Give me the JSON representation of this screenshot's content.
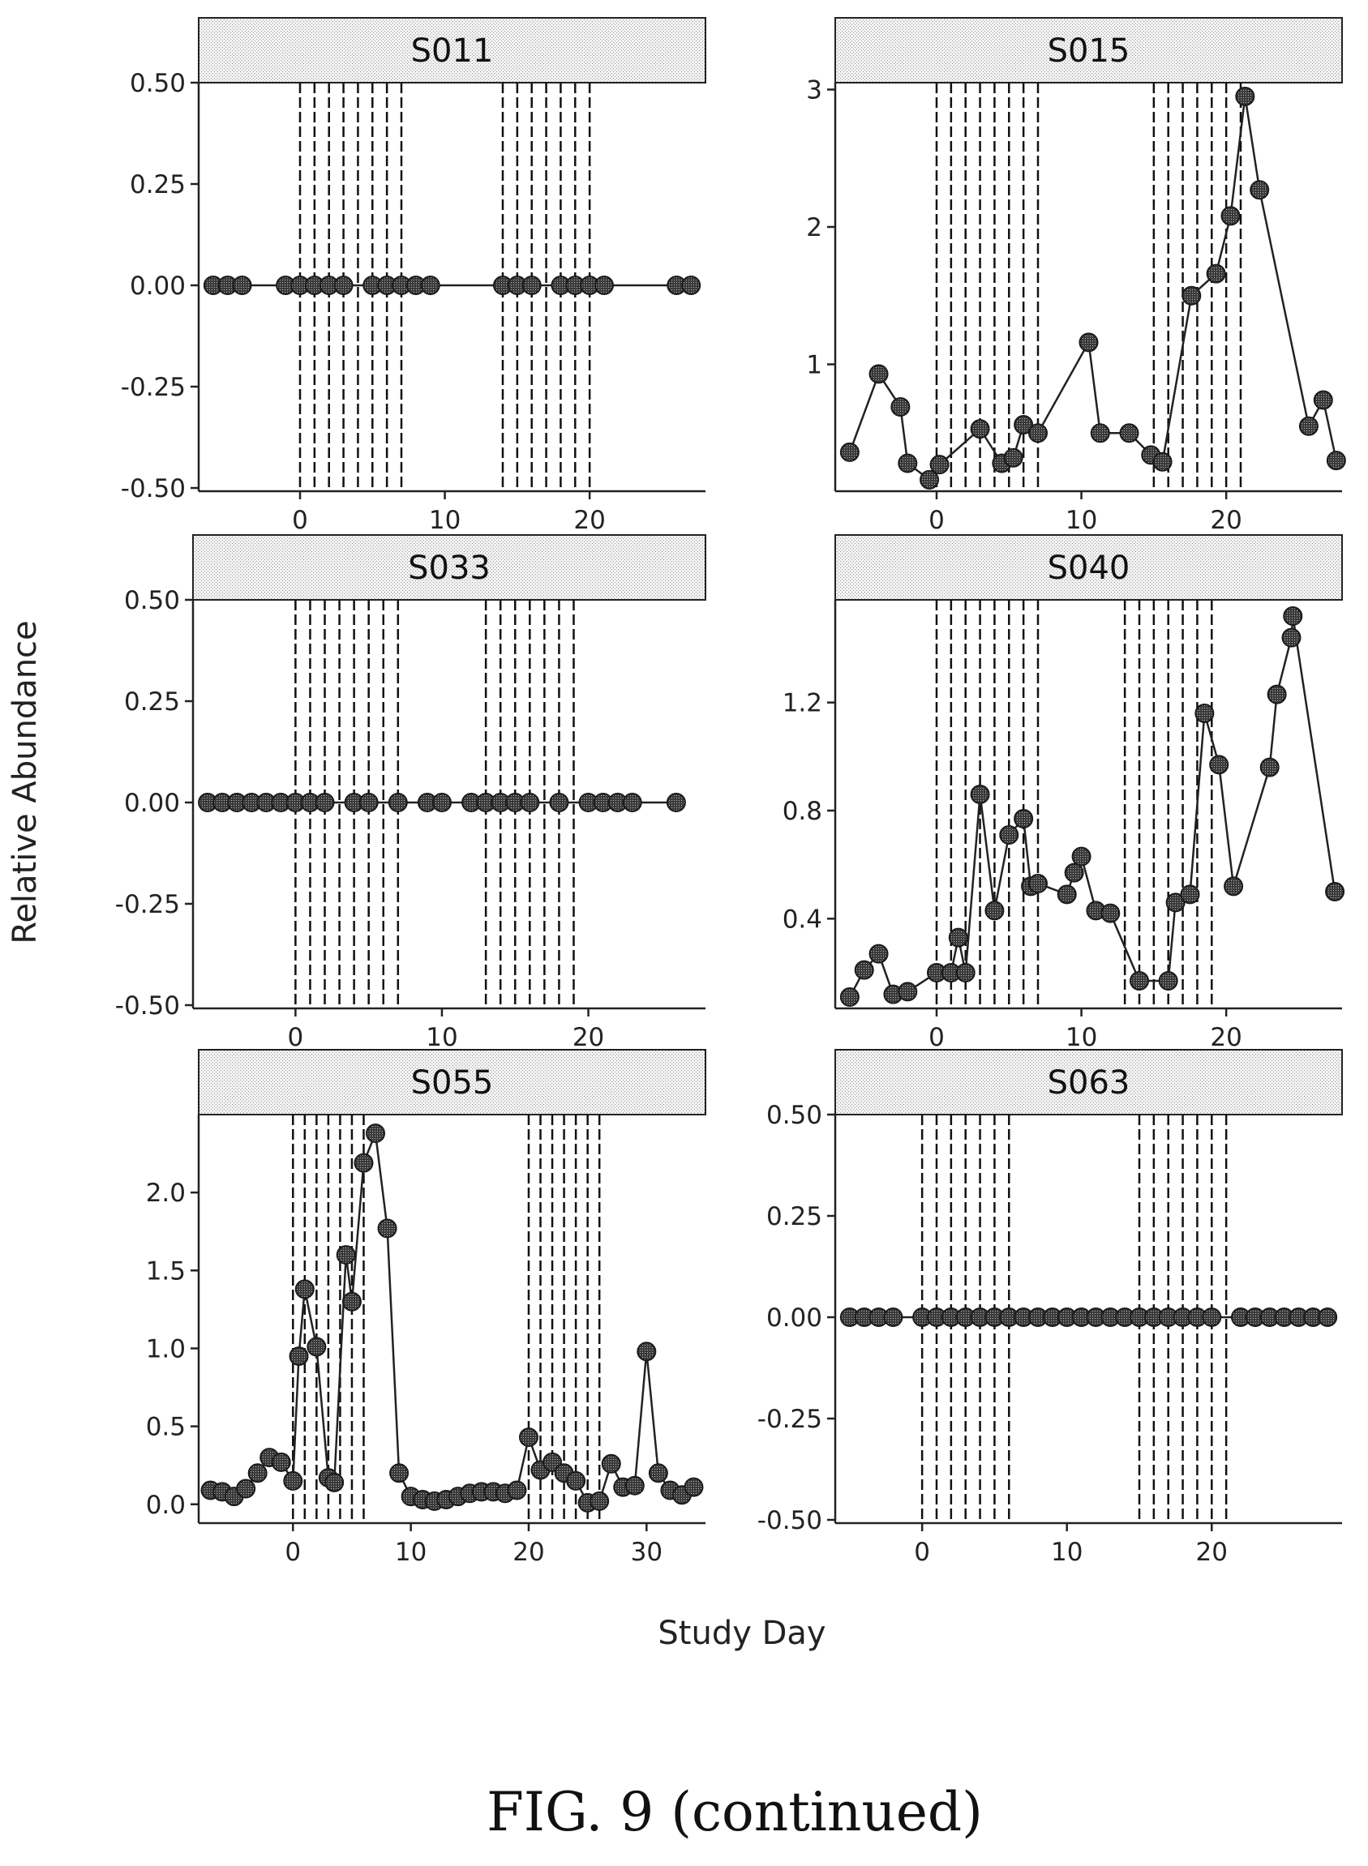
{
  "figure": {
    "caption": "FIG. 9 (continued)",
    "xlabel": "Study Day",
    "ylabel": "Relative Abundance"
  },
  "chart_data": [
    {
      "type": "line",
      "title": "S011",
      "xlim": [
        -7,
        28
      ],
      "ylim": [
        -0.5,
        0.5
      ],
      "x_ticks": [
        0,
        10,
        20
      ],
      "y_ticks": [
        -0.5,
        -0.25,
        0.0,
        0.25,
        0.5
      ],
      "y_tick_labels": [
        "-0.50",
        "-0.25",
        "0.00",
        "0.25",
        "0.50"
      ],
      "grid": false,
      "dose_days": [
        0,
        1,
        2,
        3,
        4,
        5,
        6,
        7,
        14,
        15,
        16,
        17,
        18,
        19,
        20
      ],
      "x": [
        -6,
        -5,
        -4,
        -1,
        0,
        1,
        2,
        3,
        5,
        6,
        7,
        8,
        9,
        14,
        15,
        16,
        18,
        19,
        20,
        21,
        26,
        27
      ],
      "y": [
        0,
        0,
        0,
        0,
        0,
        0,
        0,
        0,
        0,
        0,
        0,
        0,
        0,
        0,
        0,
        0,
        0,
        0,
        0,
        0,
        0,
        0
      ]
    },
    {
      "type": "line",
      "title": "S015",
      "xlim": [
        -7,
        28
      ],
      "ylim": [
        0.1,
        3.05
      ],
      "x_ticks": [
        0,
        10,
        20
      ],
      "y_ticks": [
        1,
        2,
        3
      ],
      "y_tick_labels": [
        "1",
        "2",
        "3"
      ],
      "grid": false,
      "dose_days": [
        0,
        1,
        2,
        3,
        4,
        5,
        6,
        7,
        15,
        16,
        17,
        18,
        19,
        20,
        21
      ],
      "x": [
        -6,
        -4,
        -2.5,
        -2,
        -0.5,
        0.2,
        3,
        4.5,
        5.3,
        6,
        7,
        10.5,
        11.3,
        13.3,
        14.8,
        15.6,
        17.6,
        19.3,
        20.3,
        21.3,
        22.3,
        25.7,
        26.7,
        27.6
      ],
      "y": [
        0.36,
        0.93,
        0.69,
        0.28,
        0.16,
        0.27,
        0.53,
        0.28,
        0.32,
        0.56,
        0.5,
        1.16,
        0.5,
        0.5,
        0.34,
        0.29,
        1.5,
        1.66,
        2.08,
        2.95,
        2.27,
        0.55,
        0.74,
        0.3
      ]
    },
    {
      "type": "line",
      "title": "S033",
      "xlim": [
        -7,
        28
      ],
      "ylim": [
        -0.5,
        0.5
      ],
      "x_ticks": [
        0,
        10,
        20
      ],
      "y_ticks": [
        -0.5,
        -0.25,
        0.0,
        0.25,
        0.5
      ],
      "y_tick_labels": [
        "-0.50",
        "-0.25",
        "0.00",
        "0.25",
        "0.50"
      ],
      "grid": false,
      "dose_days": [
        0,
        1,
        2,
        3,
        4,
        5,
        6,
        7,
        13,
        14,
        15,
        16,
        17,
        18,
        19
      ],
      "x": [
        -6,
        -5,
        -4,
        -3,
        -2,
        -1,
        0,
        1,
        2,
        4,
        5,
        7,
        9,
        10,
        12,
        13,
        14,
        15,
        16,
        18,
        20,
        21,
        22,
        23,
        26
      ],
      "y": [
        0,
        0,
        0,
        0,
        0,
        0,
        0,
        0,
        0,
        0,
        0,
        0,
        0,
        0,
        0,
        0,
        0,
        0,
        0,
        0,
        0,
        0,
        0,
        0,
        0
      ]
    },
    {
      "type": "line",
      "title": "S040",
      "xlim": [
        -7,
        28
      ],
      "ylim": [
        0.08,
        1.58
      ],
      "x_ticks": [
        0,
        10,
        20
      ],
      "y_ticks": [
        0.4,
        0.8,
        1.2
      ],
      "y_tick_labels": [
        "0.4",
        "0.8",
        "1.2"
      ],
      "grid": false,
      "dose_days": [
        0,
        1,
        2,
        3,
        4,
        5,
        6,
        7,
        13,
        14,
        15,
        16,
        17,
        18,
        19
      ],
      "x": [
        -6,
        -5,
        -4,
        -3,
        -2,
        0,
        1,
        1.5,
        2,
        3,
        4,
        5,
        6,
        6.5,
        7,
        9,
        9.5,
        10,
        11,
        12,
        14,
        16,
        16.5,
        17.5,
        18.5,
        19.5,
        20.5,
        23,
        23.5,
        24.5,
        24.6,
        27.5
      ],
      "y": [
        0.11,
        0.21,
        0.27,
        0.12,
        0.13,
        0.2,
        0.2,
        0.33,
        0.2,
        0.86,
        0.43,
        0.71,
        0.77,
        0.52,
        0.53,
        0.49,
        0.57,
        0.63,
        0.43,
        0.42,
        0.17,
        0.17,
        0.46,
        0.49,
        1.16,
        0.97,
        0.52,
        0.96,
        1.23,
        1.44,
        1.52,
        0.5
      ]
    },
    {
      "type": "line",
      "title": "S055",
      "xlim": [
        -8,
        35
      ],
      "ylim": [
        -0.1,
        2.5
      ],
      "x_ticks": [
        0,
        10,
        20,
        30
      ],
      "y_ticks": [
        0.0,
        0.5,
        1.0,
        1.5,
        2.0
      ],
      "y_tick_labels": [
        "0.0",
        "0.5",
        "1.0",
        "1.5",
        "2.0"
      ],
      "grid": false,
      "dose_days": [
        0,
        1,
        2,
        3,
        4,
        5,
        6,
        20,
        21,
        22,
        23,
        24,
        25,
        26
      ],
      "x": [
        -7,
        -6,
        -5,
        -4,
        -3,
        -2,
        -1,
        0,
        0.5,
        1,
        2,
        3,
        3.5,
        4.5,
        5,
        6,
        7,
        8,
        9,
        10,
        11,
        12,
        13,
        14,
        15,
        16,
        17,
        18,
        19,
        20,
        21,
        22,
        23,
        24,
        25,
        26,
        27,
        28,
        29,
        30,
        31,
        32,
        33,
        34
      ],
      "y": [
        0.09,
        0.08,
        0.05,
        0.1,
        0.2,
        0.3,
        0.27,
        0.15,
        0.95,
        1.38,
        1.01,
        0.17,
        0.14,
        1.6,
        1.3,
        2.19,
        2.38,
        1.77,
        0.2,
        0.05,
        0.03,
        0.02,
        0.03,
        0.05,
        0.07,
        0.08,
        0.08,
        0.07,
        0.09,
        0.43,
        0.22,
        0.27,
        0.2,
        0.15,
        0.01,
        0.02,
        0.26,
        0.11,
        0.12,
        0.98,
        0.2,
        0.09,
        0.06,
        0.11
      ]
    },
    {
      "type": "line",
      "title": "S063",
      "xlim": [
        -6,
        29
      ],
      "ylim": [
        -0.5,
        0.5
      ],
      "x_ticks": [
        0,
        10,
        20
      ],
      "y_ticks": [
        -0.5,
        -0.25,
        0.0,
        0.25,
        0.5
      ],
      "y_tick_labels": [
        "-0.50",
        "-0.25",
        "0.00",
        "0.25",
        "0.50"
      ],
      "grid": false,
      "dose_days": [
        0,
        1,
        2,
        3,
        4,
        5,
        6,
        15,
        16,
        17,
        18,
        19,
        20,
        21
      ],
      "x": [
        -5,
        -4,
        -3,
        -2,
        0,
        1,
        2,
        3,
        4,
        5,
        6,
        7,
        8,
        9,
        10,
        11,
        12,
        13,
        14,
        15,
        16,
        17,
        18,
        19,
        20,
        22,
        23,
        24,
        25,
        26,
        27,
        28
      ],
      "y": [
        0,
        0,
        0,
        0,
        0,
        0,
        0,
        0,
        0,
        0,
        0,
        0,
        0,
        0,
        0,
        0,
        0,
        0,
        0,
        0,
        0,
        0,
        0,
        0,
        0,
        0,
        0,
        0,
        0,
        0,
        0,
        0
      ]
    }
  ]
}
